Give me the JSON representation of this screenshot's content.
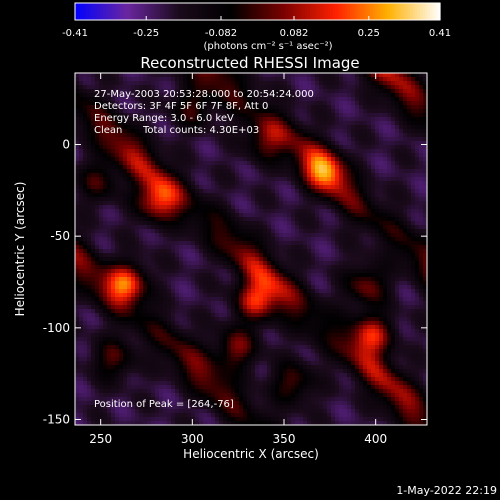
{
  "chart_data": {
    "type": "heatmap",
    "title": "Reconstructed RHESSI Image",
    "xlabel": "Heliocentric X (arcsec)",
    "ylabel": "Heliocentric Y (arcsec)",
    "xlim": [
      236,
      428
    ],
    "ylim": [
      -153,
      39
    ],
    "x_ticks": [
      250,
      300,
      350,
      400
    ],
    "y_ticks": [
      0,
      -50,
      -100,
      -150
    ],
    "colorbar": {
      "min": -0.41,
      "max": 0.41,
      "ticks": [
        -0.41,
        -0.25,
        -0.082,
        0.082,
        0.25,
        0.41
      ],
      "tick_labels": [
        "-0.41",
        "-0.25",
        "-0.082",
        "0.082",
        "0.25",
        "0.41"
      ],
      "unit_label": "(photons cm⁻² s⁻¹ asec⁻²)",
      "colors": [
        "#0000ff",
        "#6a26a0",
        "#1a0a1a",
        "#000000",
        "#7a0000",
        "#ff2000",
        "#ffb000",
        "#ffffff"
      ]
    },
    "annotations": {
      "time_range": "27-May-2003 20:53:28.000 to 20:54:24.000",
      "detectors": "Detectors: 3F 4F 5F 6F 7F 8F, Att 0",
      "energy_range": "Energy Range: 3.0 - 6.0 keV",
      "algorithm": "Clean",
      "total_counts": "Total counts: 4.30E+03",
      "peak_position": "Position of Peak = [264,-76]"
    },
    "peak": {
      "x": 264,
      "y": -76
    },
    "bright_bands": [
      {
        "intercept": 490,
        "value": 0.3
      },
      {
        "intercept": 405,
        "value": 0.32
      },
      {
        "intercept": 320,
        "value": 0.28
      },
      {
        "intercept": 235,
        "value": 0.3
      },
      {
        "intercept": 150,
        "value": 0.25
      }
    ],
    "band_slope": -0.9,
    "hotspots": [
      {
        "x": 264,
        "y": -76,
        "value": 0.41
      },
      {
        "x": 281,
        "y": -31,
        "value": 0.34
      },
      {
        "x": 335,
        "y": -85,
        "value": 0.37
      },
      {
        "x": 398,
        "y": -104,
        "value": 0.35
      },
      {
        "x": 372,
        "y": -14,
        "value": 0.3
      },
      {
        "x": 395,
        "y": -77,
        "value": 0.26
      },
      {
        "x": 324,
        "y": -111,
        "value": 0.27
      },
      {
        "x": 257,
        "y": -117,
        "value": 0.22
      },
      {
        "x": 249,
        "y": -20,
        "value": 0.2
      },
      {
        "x": 300,
        "y": 20,
        "value": 0.2
      },
      {
        "x": 340,
        "y": 2,
        "value": 0.22
      },
      {
        "x": 355,
        "y": -130,
        "value": 0.23
      }
    ]
  },
  "footer": {
    "date": "1-May-2022 22:19"
  }
}
